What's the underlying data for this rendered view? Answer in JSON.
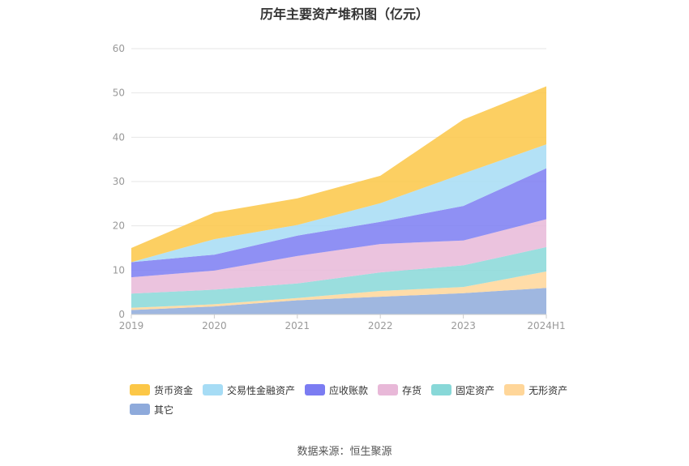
{
  "title": "历年主要资产堆积图（亿元）",
  "source": "数据来源：恒生聚源",
  "chart_data": {
    "type": "area",
    "stacked": true,
    "title": "历年主要资产堆积图（亿元）",
    "categories": [
      "2019",
      "2020",
      "2021",
      "2022",
      "2023",
      "2024H1"
    ],
    "ylim": [
      0,
      60
    ],
    "yticks": [
      0,
      10,
      20,
      30,
      40,
      50,
      60
    ],
    "grid": true,
    "legend_position": "bottom",
    "series": [
      {
        "name": "其它",
        "color": "#8eaadb",
        "values": [
          1.0,
          1.8,
          3.2,
          4.0,
          4.8,
          6.0
        ]
      },
      {
        "name": "无形资产",
        "color": "#ffd699",
        "values": [
          0.5,
          0.5,
          0.5,
          1.3,
          1.4,
          3.7
        ]
      },
      {
        "name": "固定资产",
        "color": "#88d8d8",
        "values": [
          3.2,
          3.3,
          3.3,
          4.2,
          4.9,
          5.5
        ]
      },
      {
        "name": "存货",
        "color": "#e8b8d8",
        "values": [
          3.7,
          4.3,
          6.2,
          6.4,
          5.6,
          6.3
        ]
      },
      {
        "name": "应收账款",
        "color": "#7b7cf2",
        "values": [
          3.4,
          3.6,
          4.6,
          5.0,
          7.8,
          11.5
        ]
      },
      {
        "name": "交易性金融资产",
        "color": "#a6dcf5",
        "values": [
          0.0,
          3.5,
          2.4,
          4.2,
          7.3,
          5.4
        ]
      },
      {
        "name": "货币资金",
        "color": "#fcc747",
        "values": [
          3.2,
          6.0,
          6.0,
          6.2,
          12.2,
          13.1
        ]
      }
    ]
  }
}
